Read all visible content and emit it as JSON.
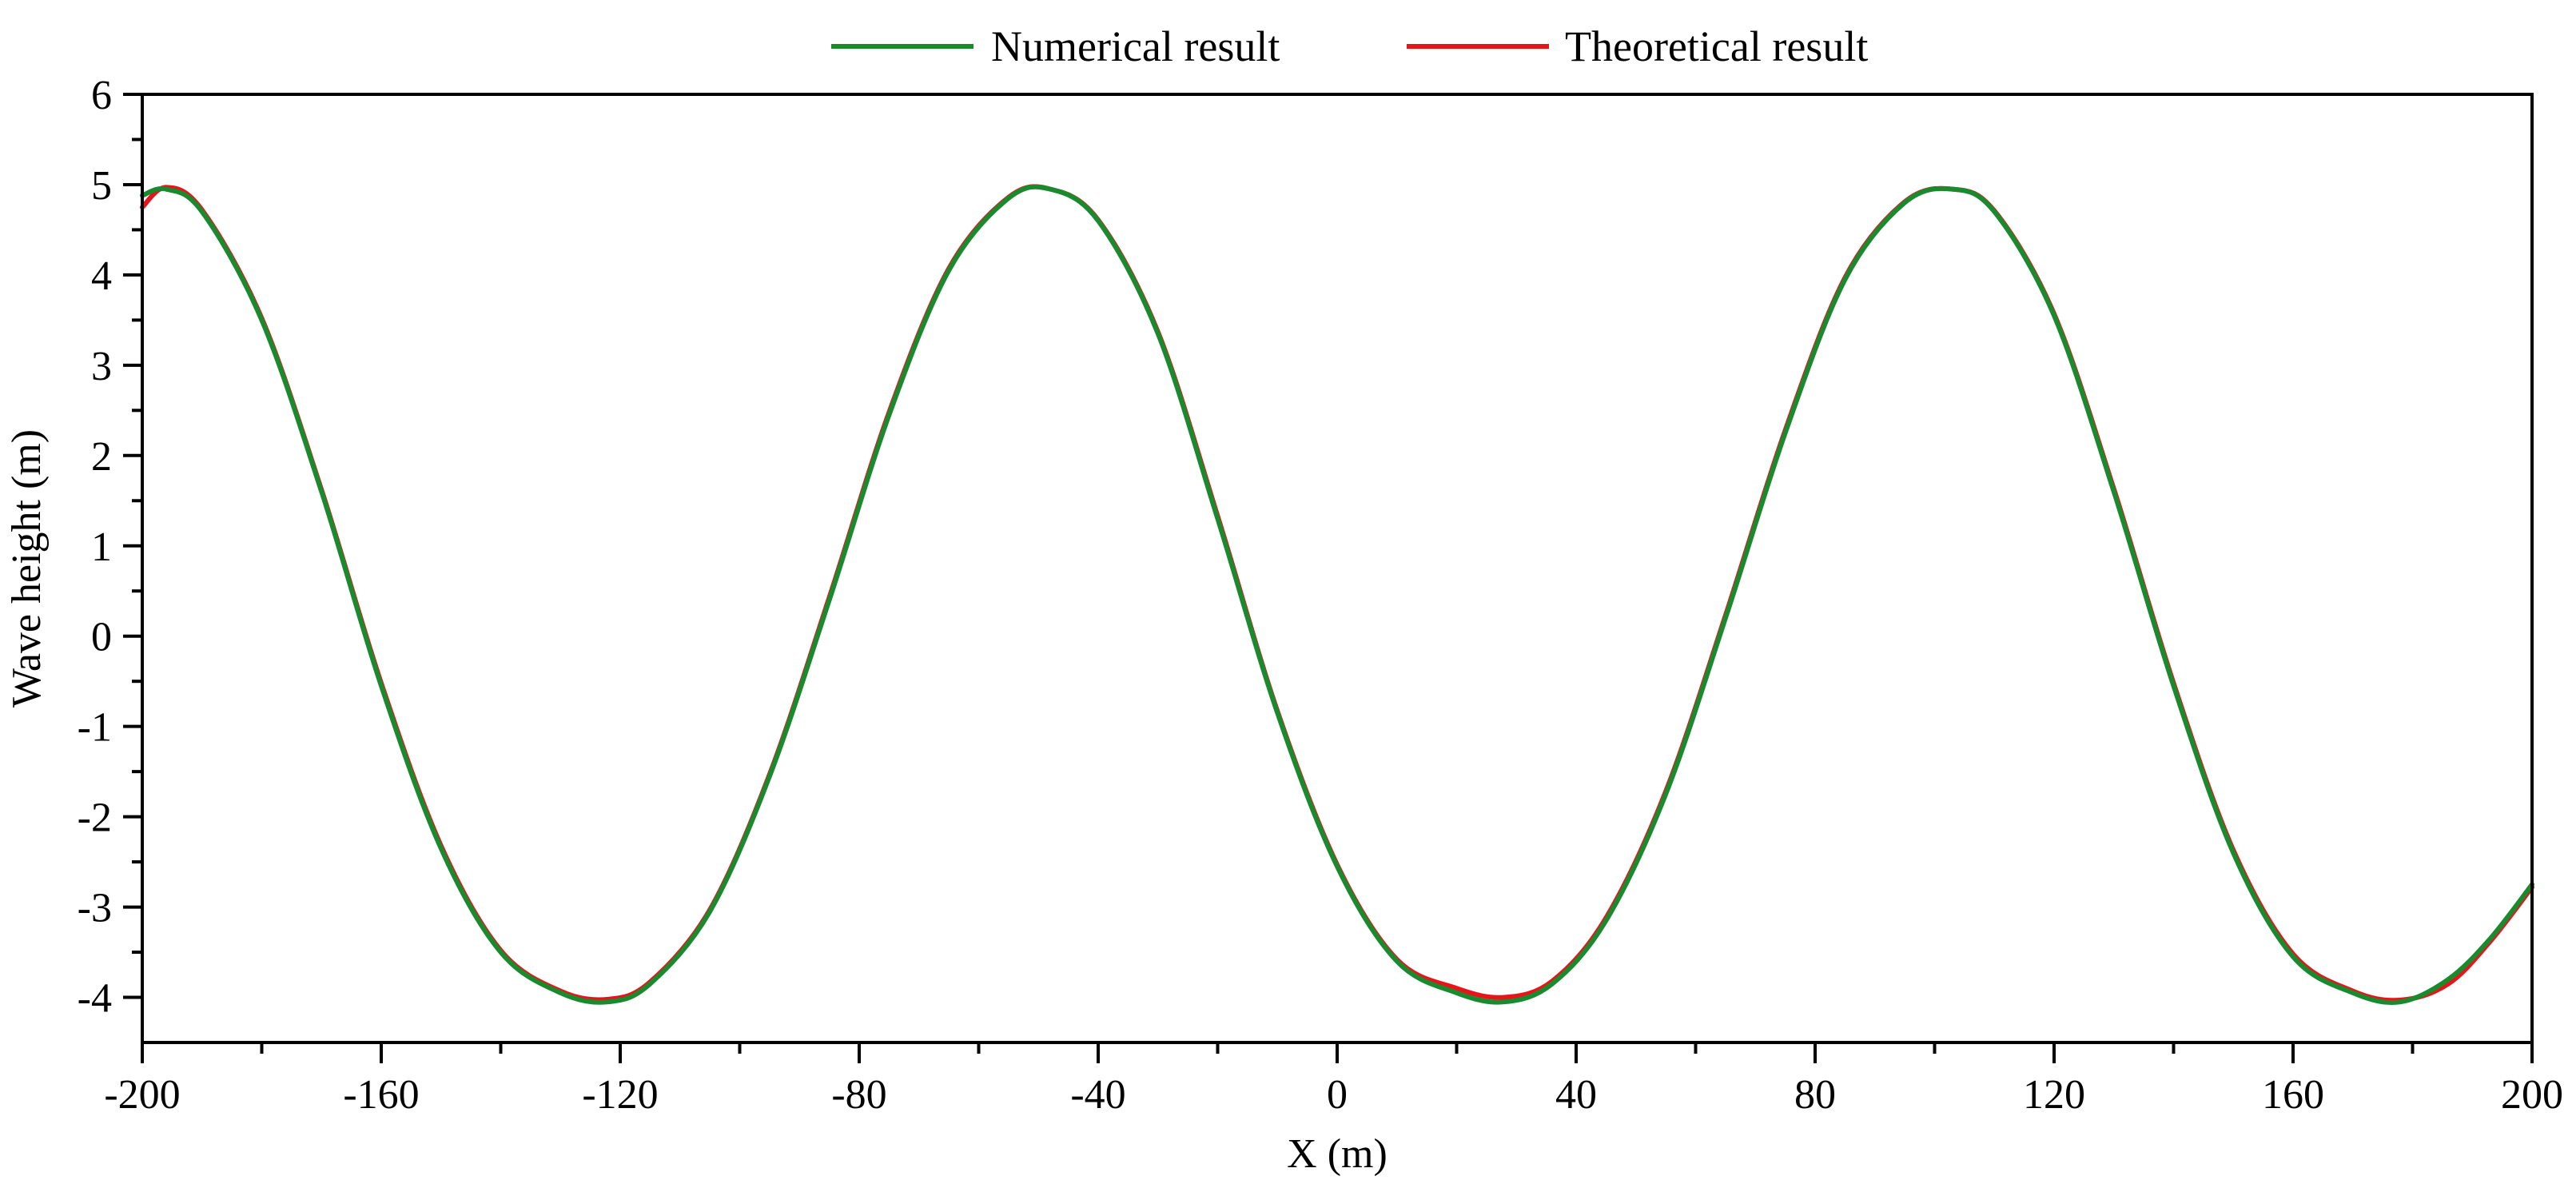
{
  "chart_data": {
    "type": "line",
    "xlabel": "X (m)",
    "ylabel": "Wave height (m)",
    "xlim": [
      -200,
      200
    ],
    "ylim": [
      -4.5,
      6
    ],
    "xticks": [
      -200,
      -160,
      -120,
      -80,
      -40,
      0,
      40,
      80,
      120,
      160,
      200
    ],
    "yticks": [
      -4,
      -3,
      -2,
      -1,
      0,
      1,
      2,
      3,
      4,
      5,
      6
    ],
    "xtick_labels": [
      "-200",
      "-160",
      "-120",
      "-80",
      "-40",
      "0",
      "40",
      "80",
      "120",
      "160",
      "200"
    ],
    "ytick_labels": [
      "-4",
      "-3",
      "-2",
      "-1",
      "0",
      "1",
      "2",
      "3",
      "4",
      "5",
      "6"
    ],
    "grid": false,
    "legend_position": "top-center",
    "series": [
      {
        "name": "Numerical result",
        "color": "#1a8a2e",
        "points": [
          [
            -200,
            4.88
          ],
          [
            -196,
            4.95
          ],
          [
            -190,
            4.7
          ],
          [
            -180,
            3.5
          ],
          [
            -170,
            1.6
          ],
          [
            -160,
            -0.55
          ],
          [
            -150,
            -2.35
          ],
          [
            -140,
            -3.5
          ],
          [
            -130,
            -3.95
          ],
          [
            -122,
            -4.05
          ],
          [
            -115,
            -3.85
          ],
          [
            -105,
            -3.05
          ],
          [
            -95,
            -1.55
          ],
          [
            -85,
            0.4
          ],
          [
            -75,
            2.45
          ],
          [
            -65,
            4.05
          ],
          [
            -55,
            4.85
          ],
          [
            -48,
            4.95
          ],
          [
            -40,
            4.6
          ],
          [
            -30,
            3.35
          ],
          [
            -20,
            1.3
          ],
          [
            -10,
            -0.85
          ],
          [
            0,
            -2.55
          ],
          [
            10,
            -3.6
          ],
          [
            20,
            -3.95
          ],
          [
            28,
            -4.05
          ],
          [
            36,
            -3.85
          ],
          [
            45,
            -3.15
          ],
          [
            55,
            -1.75
          ],
          [
            65,
            0.2
          ],
          [
            75,
            2.25
          ],
          [
            85,
            3.95
          ],
          [
            95,
            4.8
          ],
          [
            103,
            4.95
          ],
          [
            110,
            4.7
          ],
          [
            120,
            3.55
          ],
          [
            130,
            1.6
          ],
          [
            140,
            -0.55
          ],
          [
            150,
            -2.4
          ],
          [
            160,
            -3.55
          ],
          [
            170,
            -3.95
          ],
          [
            178,
            -4.05
          ],
          [
            186,
            -3.8
          ],
          [
            193,
            -3.35
          ],
          [
            200,
            -2.75
          ]
        ]
      },
      {
        "name": "Theoretical result",
        "color": "#e8141c",
        "points": [
          [
            -200,
            4.75
          ],
          [
            -196,
            4.97
          ],
          [
            -190,
            4.72
          ],
          [
            -180,
            3.52
          ],
          [
            -170,
            1.62
          ],
          [
            -160,
            -0.52
          ],
          [
            -150,
            -2.32
          ],
          [
            -140,
            -3.48
          ],
          [
            -130,
            -3.93
          ],
          [
            -122,
            -4.02
          ],
          [
            -115,
            -3.83
          ],
          [
            -105,
            -3.03
          ],
          [
            -95,
            -1.53
          ],
          [
            -85,
            0.43
          ],
          [
            -75,
            2.48
          ],
          [
            -65,
            4.07
          ],
          [
            -55,
            4.86
          ],
          [
            -48,
            4.95
          ],
          [
            -40,
            4.61
          ],
          [
            -30,
            3.37
          ],
          [
            -20,
            1.33
          ],
          [
            -10,
            -0.83
          ],
          [
            0,
            -2.53
          ],
          [
            10,
            -3.58
          ],
          [
            20,
            -3.9
          ],
          [
            28,
            -4.0
          ],
          [
            36,
            -3.82
          ],
          [
            45,
            -3.12
          ],
          [
            55,
            -1.72
          ],
          [
            65,
            0.23
          ],
          [
            75,
            2.28
          ],
          [
            85,
            3.97
          ],
          [
            95,
            4.81
          ],
          [
            103,
            4.95
          ],
          [
            110,
            4.71
          ],
          [
            120,
            3.57
          ],
          [
            130,
            1.63
          ],
          [
            140,
            -0.52
          ],
          [
            150,
            -2.37
          ],
          [
            160,
            -3.52
          ],
          [
            170,
            -3.93
          ],
          [
            178,
            -4.03
          ],
          [
            186,
            -3.85
          ],
          [
            193,
            -3.38
          ],
          [
            200,
            -2.78
          ]
        ]
      }
    ]
  }
}
